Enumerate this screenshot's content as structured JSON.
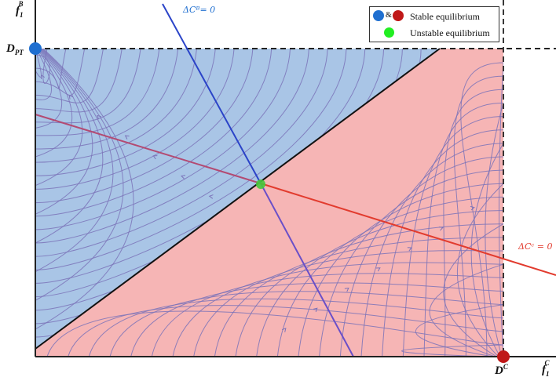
{
  "axes": {
    "y_label": {
      "main": "f",
      "sub": "1",
      "sup": "B"
    },
    "x_label": {
      "main": "f",
      "sub": "1",
      "sup": "C"
    },
    "y_marker": {
      "main": "D",
      "sub": "PT"
    },
    "x_marker": {
      "main": "D",
      "sup": "C"
    }
  },
  "curves": {
    "blue_nullcline": "ΔCᴮ= 0",
    "red_nullcline": "ΔCᶜ = 0"
  },
  "legend": {
    "stable_label": "Stable equilibrium",
    "amp": "&",
    "unstable_label": "Unstable equilibrium"
  },
  "colors": {
    "blue_region": "#a9c5e6",
    "red_region": "#f6b5b5",
    "stream": "#7b73b9",
    "blue_curve": "#2b44c8",
    "red_curve": "#e23b2e",
    "stable_blue": "#1f6fd0",
    "stable_red": "#c01818",
    "unstable": "#22ee22"
  }
}
